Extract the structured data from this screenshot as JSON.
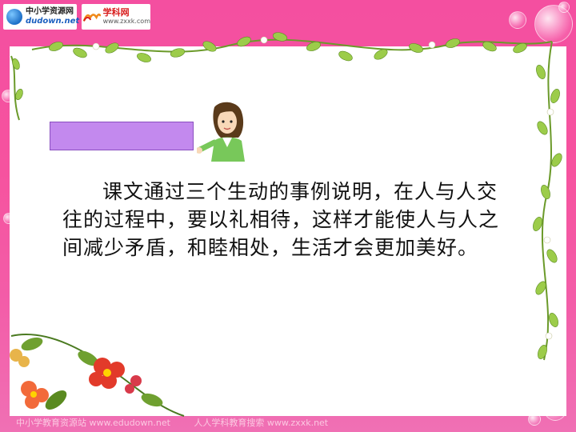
{
  "header": {
    "logo_left_line1": "中小学资源网",
    "logo_left_line2": "dudown.net",
    "logo_right_name": "学科网",
    "logo_right_url": "www.zxxk.com"
  },
  "slide": {
    "body_text": "课文通过三个生动的事例说明，在人与人交往的过程中，要以礼相待，这样才能使人与人之间减少矛盾，和睦相处，生活才会更加美好。"
  },
  "footer": {
    "left": "中小学教育资源站 www.edudown.net",
    "right": "人人学科教育搜索 www.zxxk.net"
  },
  "colors": {
    "background": "#f44fa0",
    "label_box": "#c389ee",
    "panel": "#ffffff"
  },
  "icons": [
    "globe-logo-icon",
    "xk-logo-icon",
    "girl-illustration",
    "flower-vine-decoration"
  ]
}
